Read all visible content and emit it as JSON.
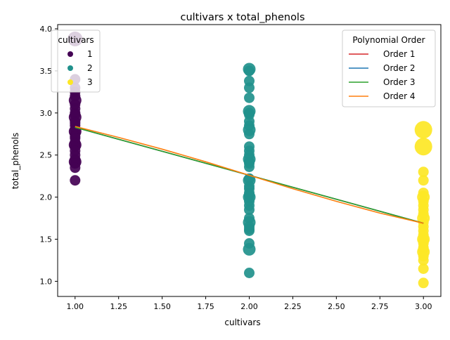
{
  "chart_data": {
    "type": "scatter",
    "title": "cultivars x total_phenols",
    "xlabel": "cultivars",
    "ylabel": "total_phenols",
    "xlim": [
      0.9,
      3.1
    ],
    "ylim": [
      0.82,
      4.05
    ],
    "x_ticks": [
      "1.00",
      "1.25",
      "1.50",
      "1.75",
      "2.00",
      "2.25",
      "2.50",
      "2.75",
      "3.00"
    ],
    "y_ticks": [
      "1.0",
      "1.5",
      "2.0",
      "2.5",
      "3.0",
      "3.5",
      "4.0"
    ],
    "grid": false,
    "scatter_series": [
      {
        "name": "1",
        "color": "#440154",
        "x": 1,
        "values": [
          3.88,
          3.4,
          3.3,
          3.25,
          3.2,
          3.15,
          3.1,
          3.05,
          3.0,
          2.98,
          2.95,
          2.9,
          2.88,
          2.85,
          2.8,
          2.78,
          2.75,
          2.72,
          2.7,
          2.65,
          2.62,
          2.6,
          2.55,
          2.5,
          2.45,
          2.42,
          2.4,
          2.35,
          2.2
        ]
      },
      {
        "name": "2",
        "color": "#21918c",
        "x": 2,
        "values": [
          3.52,
          3.5,
          3.38,
          3.3,
          3.18,
          3.02,
          3.0,
          2.98,
          2.9,
          2.85,
          2.8,
          2.75,
          2.6,
          2.55,
          2.5,
          2.45,
          2.42,
          2.4,
          2.36,
          2.22,
          2.2,
          2.13,
          2.1,
          2.05,
          2.02,
          2.0,
          1.95,
          1.9,
          1.85,
          1.75,
          1.7,
          1.65,
          1.62,
          1.6,
          1.45,
          1.38,
          1.1
        ]
      },
      {
        "name": "3",
        "color": "#fde725",
        "x": 3,
        "values": [
          2.8,
          2.6,
          2.3,
          2.2,
          2.05,
          2.0,
          1.95,
          1.9,
          1.85,
          1.8,
          1.75,
          1.7,
          1.65,
          1.6,
          1.55,
          1.5,
          1.48,
          1.45,
          1.4,
          1.38,
          1.35,
          1.3,
          1.25,
          1.15,
          0.98
        ]
      }
    ],
    "legends": {
      "cultivars": {
        "title": "cultivars",
        "placement": "upper left",
        "entries": [
          "1",
          "2",
          "3"
        ]
      },
      "polynomial": {
        "title": "Polynomial Order",
        "placement": "upper right",
        "entries": [
          "Order 1",
          "Order 2",
          "Order 3",
          "Order 4"
        ]
      }
    },
    "fit_series": [
      {
        "name": "Order 1",
        "color": "#d62728",
        "x": [
          1,
          2,
          3
        ],
        "values": [
          2.83,
          2.26,
          1.69
        ]
      },
      {
        "name": "Order 2",
        "color": "#1f77b4",
        "x": [
          1,
          2,
          3
        ],
        "values": [
          2.83,
          2.26,
          1.69
        ]
      },
      {
        "name": "Order 3",
        "color": "#2ca02c",
        "x": [
          1,
          2,
          3
        ],
        "values": [
          2.83,
          2.26,
          1.69
        ]
      },
      {
        "name": "Order 4",
        "color": "#ff7f0e",
        "x": [
          1,
          1.25,
          1.5,
          1.75,
          2,
          2.25,
          2.5,
          2.75,
          3
        ],
        "values": [
          2.84,
          2.71,
          2.57,
          2.42,
          2.26,
          2.1,
          1.95,
          1.81,
          1.69
        ]
      }
    ]
  }
}
